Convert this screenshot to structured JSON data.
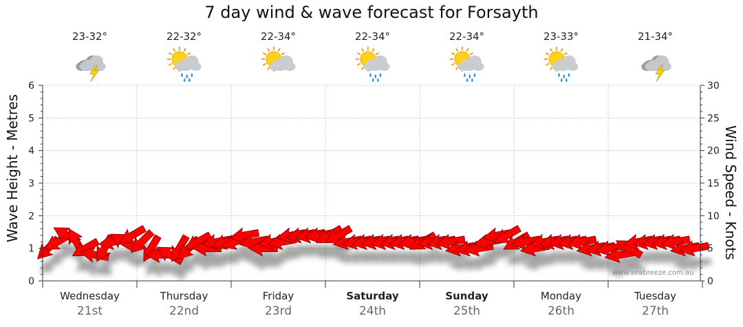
{
  "title": "7 day wind & wave forecast for Forsayth",
  "credit": "www.seabreeze.com.au",
  "days": [
    {
      "name": "Wednesday",
      "date": "21st",
      "temp": "23-32°",
      "icon": "storm-cloud-icon",
      "bold": false
    },
    {
      "name": "Thursday",
      "date": "22nd",
      "temp": "22-32°",
      "icon": "sun-cloud-rain-icon",
      "bold": false
    },
    {
      "name": "Friday",
      "date": "23rd",
      "temp": "22-34°",
      "icon": "sun-cloud-icon",
      "bold": false
    },
    {
      "name": "Saturday",
      "date": "24th",
      "temp": "22-34°",
      "icon": "sun-cloud-rain-icon",
      "bold": true
    },
    {
      "name": "Sunday",
      "date": "25th",
      "temp": "22-34°",
      "icon": "sun-cloud-rain-icon",
      "bold": true
    },
    {
      "name": "Monday",
      "date": "26th",
      "temp": "23-33°",
      "icon": "sun-cloud-rain-icon",
      "bold": false
    },
    {
      "name": "Tuesday",
      "date": "27th",
      "temp": "21-34°",
      "icon": "storm-cloud-icon",
      "bold": false
    }
  ],
  "chart_data": {
    "type": "line",
    "ylabel": "Wave Height - Metres",
    "y2label": "Wind Speed - Knots",
    "ylim": [
      0,
      6
    ],
    "y2lim": [
      0,
      30
    ],
    "yticks": [
      "0",
      "1",
      "2",
      "3",
      "4",
      "5",
      "6"
    ],
    "y2ticks": [
      "0",
      "5",
      "10",
      "15",
      "20",
      "25",
      "30"
    ],
    "grid": true,
    "series": [
      {
        "color": "#ff0000",
        "marker": "arrow",
        "wind_knots": [
          5,
          6,
          7,
          6,
          5,
          4,
          5,
          6,
          6,
          7,
          6,
          5,
          4,
          4,
          5,
          5,
          6,
          5,
          6,
          6,
          6,
          7,
          6,
          5,
          6,
          6,
          7,
          7,
          7,
          7,
          7,
          7,
          6,
          6,
          6,
          6,
          6,
          6,
          6,
          6,
          6,
          6,
          6,
          6,
          5,
          5,
          5,
          6,
          7,
          7,
          6,
          6,
          5,
          6,
          6,
          6,
          6,
          6,
          5,
          5,
          5,
          4,
          5,
          6,
          6,
          6,
          6,
          6,
          5,
          5
        ],
        "wind_dir_deg": [
          45,
          60,
          120,
          150,
          60,
          100,
          30,
          80,
          120,
          60,
          45,
          30,
          90,
          120,
          30,
          45,
          60,
          90,
          80,
          70,
          70,
          80,
          80,
          90,
          80,
          80,
          80,
          80,
          80,
          80,
          60,
          60,
          80,
          80,
          80,
          80,
          80,
          80,
          80,
          80,
          60,
          80,
          80,
          80,
          80,
          80,
          80,
          80,
          80,
          60,
          60,
          80,
          80,
          80,
          80,
          80,
          80,
          80,
          80,
          80,
          80,
          80,
          120,
          80,
          80,
          80,
          80,
          80,
          80,
          80
        ]
      }
    ]
  }
}
